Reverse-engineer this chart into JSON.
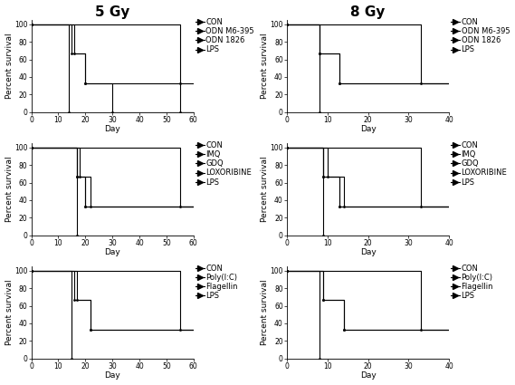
{
  "col_titles": [
    "5 Gy",
    "8 Gy"
  ],
  "title_fontsize": 11,
  "axis_label_fontsize": 6.5,
  "tick_fontsize": 5.5,
  "legend_fontsize": 6,
  "rows": [
    {
      "legends": [
        "CON",
        "ODN M6-395",
        "ODN 1826",
        "LPS"
      ],
      "xlim_5gy": [
        0,
        60
      ],
      "xlim_8gy": [
        0,
        40
      ],
      "xticks_5gy": [
        0,
        10,
        20,
        30,
        40,
        50,
        60
      ],
      "xticks_8gy": [
        0,
        10,
        20,
        30,
        40
      ],
      "curves_5gy": [
        {
          "x": [
            0,
            14,
            14,
            60
          ],
          "y": [
            100,
            100,
            0,
            0
          ]
        },
        {
          "x": [
            0,
            15,
            15,
            20,
            20,
            30,
            30,
            60
          ],
          "y": [
            100,
            100,
            67,
            67,
            33,
            33,
            0,
            0
          ]
        },
        {
          "x": [
            0,
            16,
            16,
            20,
            20,
            30,
            30,
            55,
            55,
            60
          ],
          "y": [
            100,
            100,
            67,
            67,
            33,
            33,
            33,
            33,
            0,
            0
          ]
        },
        {
          "x": [
            0,
            55,
            55,
            60
          ],
          "y": [
            100,
            100,
            33,
            33
          ]
        }
      ],
      "curves_8gy": [
        {
          "x": [
            0,
            8,
            8,
            40
          ],
          "y": [
            100,
            100,
            0,
            0
          ]
        },
        {
          "x": [
            0,
            8,
            8,
            13,
            13,
            40
          ],
          "y": [
            100,
            100,
            67,
            67,
            33,
            33
          ]
        },
        {
          "x": [
            0,
            8,
            8,
            13,
            13,
            33,
            33,
            40
          ],
          "y": [
            100,
            100,
            67,
            67,
            33,
            33,
            33,
            33
          ]
        },
        {
          "x": [
            0,
            33,
            33,
            40
          ],
          "y": [
            100,
            100,
            33,
            33
          ]
        }
      ]
    },
    {
      "legends": [
        "CON",
        "IMQ",
        "GDQ",
        "LOXORIBINE",
        "LPS"
      ],
      "xlim_5gy": [
        0,
        60
      ],
      "xlim_8gy": [
        0,
        40
      ],
      "xticks_5gy": [
        0,
        10,
        20,
        30,
        40,
        50,
        60
      ],
      "xticks_8gy": [
        0,
        10,
        20,
        30,
        40
      ],
      "curves_5gy": [
        {
          "x": [
            0,
            17,
            17,
            60
          ],
          "y": [
            100,
            100,
            0,
            0
          ]
        },
        {
          "x": [
            0,
            17,
            17,
            20,
            20,
            60
          ],
          "y": [
            100,
            100,
            67,
            67,
            33,
            33
          ]
        },
        {
          "x": [
            0,
            17,
            17,
            20,
            20,
            60
          ],
          "y": [
            100,
            100,
            67,
            67,
            33,
            33
          ]
        },
        {
          "x": [
            0,
            18,
            18,
            22,
            22,
            55,
            55,
            60
          ],
          "y": [
            100,
            100,
            67,
            67,
            33,
            33,
            33,
            33
          ]
        },
        {
          "x": [
            0,
            55,
            55,
            60
          ],
          "y": [
            100,
            100,
            33,
            33
          ]
        }
      ],
      "curves_8gy": [
        {
          "x": [
            0,
            9,
            9,
            40
          ],
          "y": [
            100,
            100,
            0,
            0
          ]
        },
        {
          "x": [
            0,
            9,
            9,
            13,
            13,
            40
          ],
          "y": [
            100,
            100,
            67,
            67,
            33,
            33
          ]
        },
        {
          "x": [
            0,
            9,
            9,
            13,
            13,
            40
          ],
          "y": [
            100,
            100,
            67,
            67,
            33,
            33
          ]
        },
        {
          "x": [
            0,
            10,
            10,
            14,
            14,
            33,
            33,
            40
          ],
          "y": [
            100,
            100,
            67,
            67,
            33,
            33,
            33,
            33
          ]
        },
        {
          "x": [
            0,
            33,
            33,
            40
          ],
          "y": [
            100,
            100,
            33,
            33
          ]
        }
      ]
    },
    {
      "legends": [
        "CON",
        "Poly(I:C)",
        "Flagellin",
        "LPS"
      ],
      "xlim_5gy": [
        0,
        60
      ],
      "xlim_8gy": [
        0,
        40
      ],
      "xticks_5gy": [
        0,
        10,
        20,
        30,
        40,
        50,
        60
      ],
      "xticks_8gy": [
        0,
        10,
        20,
        30,
        40
      ],
      "curves_5gy": [
        {
          "x": [
            0,
            15,
            15,
            60
          ],
          "y": [
            100,
            100,
            0,
            0
          ]
        },
        {
          "x": [
            0,
            16,
            16,
            22,
            22,
            60
          ],
          "y": [
            100,
            100,
            67,
            67,
            33,
            33
          ]
        },
        {
          "x": [
            0,
            17,
            17,
            22,
            22,
            55,
            55,
            60
          ],
          "y": [
            100,
            100,
            67,
            67,
            33,
            33,
            33,
            33
          ]
        },
        {
          "x": [
            0,
            55,
            55,
            60
          ],
          "y": [
            100,
            100,
            33,
            33
          ]
        }
      ],
      "curves_8gy": [
        {
          "x": [
            0,
            8,
            8,
            40
          ],
          "y": [
            100,
            100,
            0,
            0
          ]
        },
        {
          "x": [
            0,
            9,
            9,
            14,
            14,
            40
          ],
          "y": [
            100,
            100,
            67,
            67,
            33,
            33
          ]
        },
        {
          "x": [
            0,
            9,
            9,
            14,
            14,
            33,
            33,
            40
          ],
          "y": [
            100,
            100,
            67,
            67,
            33,
            33,
            33,
            33
          ]
        },
        {
          "x": [
            0,
            33,
            33,
            40
          ],
          "y": [
            100,
            100,
            33,
            33
          ]
        }
      ]
    }
  ],
  "line_color": "#000000",
  "bg_color": "#ffffff",
  "ylabel": "Percent survival",
  "xlabel": "Day",
  "yticks": [
    0,
    20,
    40,
    60,
    80,
    100
  ],
  "ylim": [
    0,
    105
  ]
}
